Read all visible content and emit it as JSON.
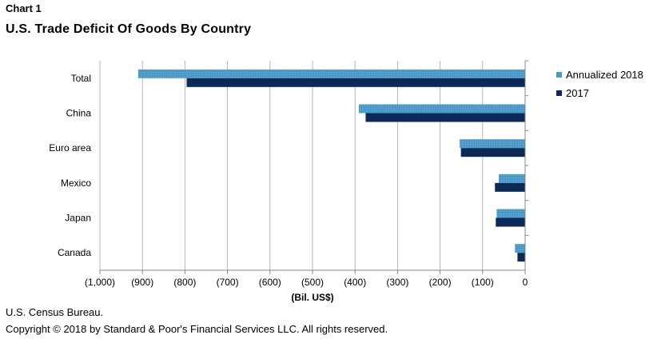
{
  "header": {
    "label": "Chart 1",
    "title": "U.S. Trade Deficit Of Goods By Country"
  },
  "footer": {
    "source": "U.S. Census Bureau.",
    "copyright": "Copyright © 2018 by Standard & Poor's Financial Services LLC. All rights reserved."
  },
  "colors": {
    "annualized_2018": "#4a9ac9",
    "y2017": "#0b2a57",
    "grid": "#b5b5b5",
    "axis": "#888888"
  },
  "chart_data": {
    "type": "bar",
    "orientation": "horizontal",
    "title": "U.S. Trade Deficit Of Goods By Country",
    "xlabel": "(Bil. US$)",
    "ylabel": "",
    "xlim": [
      -1000,
      0
    ],
    "xticks": [
      -1000,
      -900,
      -800,
      -700,
      -600,
      -500,
      -400,
      -300,
      -200,
      -100,
      0
    ],
    "xtick_labels": [
      "(1,000)",
      "(900)",
      "(800)",
      "(700)",
      "(600)",
      "(500)",
      "(400)",
      "(300)",
      "(200)",
      "(100)",
      "0"
    ],
    "grid": true,
    "legend_position": "right",
    "categories": [
      "Total",
      "China",
      "Euro area",
      "Mexico",
      "Japan",
      "Canada"
    ],
    "series": [
      {
        "name": "Annualized 2018",
        "values": [
          -910,
          -391,
          -154,
          -62,
          -67,
          -24
        ]
      },
      {
        "name": "2017",
        "values": [
          -796,
          -375,
          -151,
          -71,
          -69,
          -18
        ]
      }
    ]
  }
}
